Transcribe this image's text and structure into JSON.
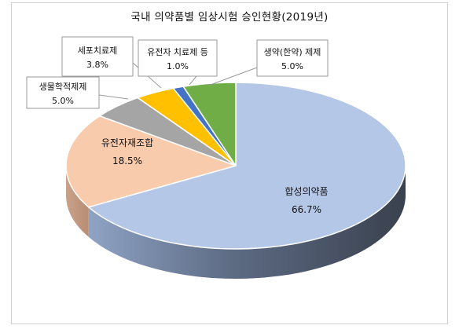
{
  "chart_data": {
    "type": "pie",
    "title": "국내 의약품별 임상시험 승인현황(2019년)",
    "slices": [
      {
        "name": "합성의약품",
        "value": 66.7,
        "label": "66.7%",
        "color": "#b4c7e7"
      },
      {
        "name": "유전자재조합",
        "value": 18.5,
        "label": "18.5%",
        "color": "#f8cbad"
      },
      {
        "name": "생물학적제제",
        "value": 5.0,
        "label": "5.0%",
        "color": "#a5a5a5"
      },
      {
        "name": "세포치료제",
        "value": 3.8,
        "label": "3.8%",
        "color": "#ffc000"
      },
      {
        "name": "유전자 치료제 등",
        "value": 1.0,
        "label": "1.0%",
        "color": "#4472c4"
      },
      {
        "name": "생약(한약) 제제",
        "value": 5.0,
        "label": "5.0%",
        "color": "#70ad47"
      }
    ],
    "legend": "none",
    "style": "3d"
  }
}
